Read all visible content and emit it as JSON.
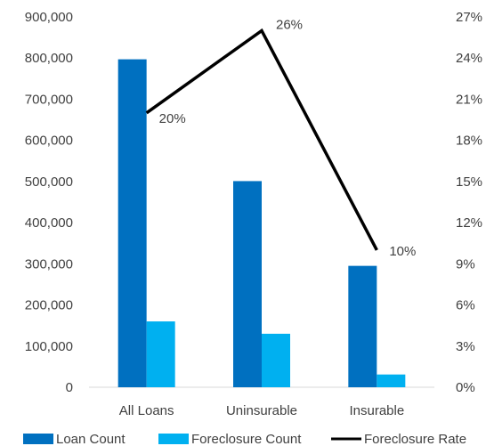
{
  "chart_data": {
    "type": "bar+line",
    "title": "",
    "categories": [
      "All Loans",
      "Uninsurable",
      "Insurable"
    ],
    "series": [
      {
        "name": "Loan Count",
        "type": "bar",
        "axis": "left",
        "values": [
          797000,
          501000,
          295000
        ],
        "color": "#0070C0"
      },
      {
        "name": "Foreclosure Count",
        "type": "bar",
        "axis": "left",
        "values": [
          160000,
          130000,
          31000
        ],
        "color": "#00B0F0"
      },
      {
        "name": "Foreclosure Rate",
        "type": "line",
        "axis": "right",
        "values": [
          0.2,
          0.26,
          0.1
        ],
        "color": "#000000"
      }
    ],
    "data_labels": [
      "20%",
      "26%",
      "10%"
    ],
    "left_axis": {
      "ylim": [
        0,
        900000
      ],
      "ticks": [
        0,
        100000,
        200000,
        300000,
        400000,
        500000,
        600000,
        700000,
        800000,
        900000
      ],
      "tick_labels": [
        "0",
        "100,000",
        "200,000",
        "300,000",
        "400,000",
        "500,000",
        "600,000",
        "700,000",
        "800,000",
        "900,000"
      ]
    },
    "right_axis": {
      "ylim": [
        0,
        0.27
      ],
      "ticks": [
        0,
        0.03,
        0.06,
        0.09,
        0.12,
        0.15,
        0.18,
        0.21,
        0.24,
        0.27
      ],
      "tick_labels": [
        "0%",
        "3%",
        "6%",
        "9%",
        "12%",
        "15%",
        "18%",
        "21%",
        "24%",
        "27%"
      ]
    },
    "grid": false,
    "legend": "bottom"
  }
}
